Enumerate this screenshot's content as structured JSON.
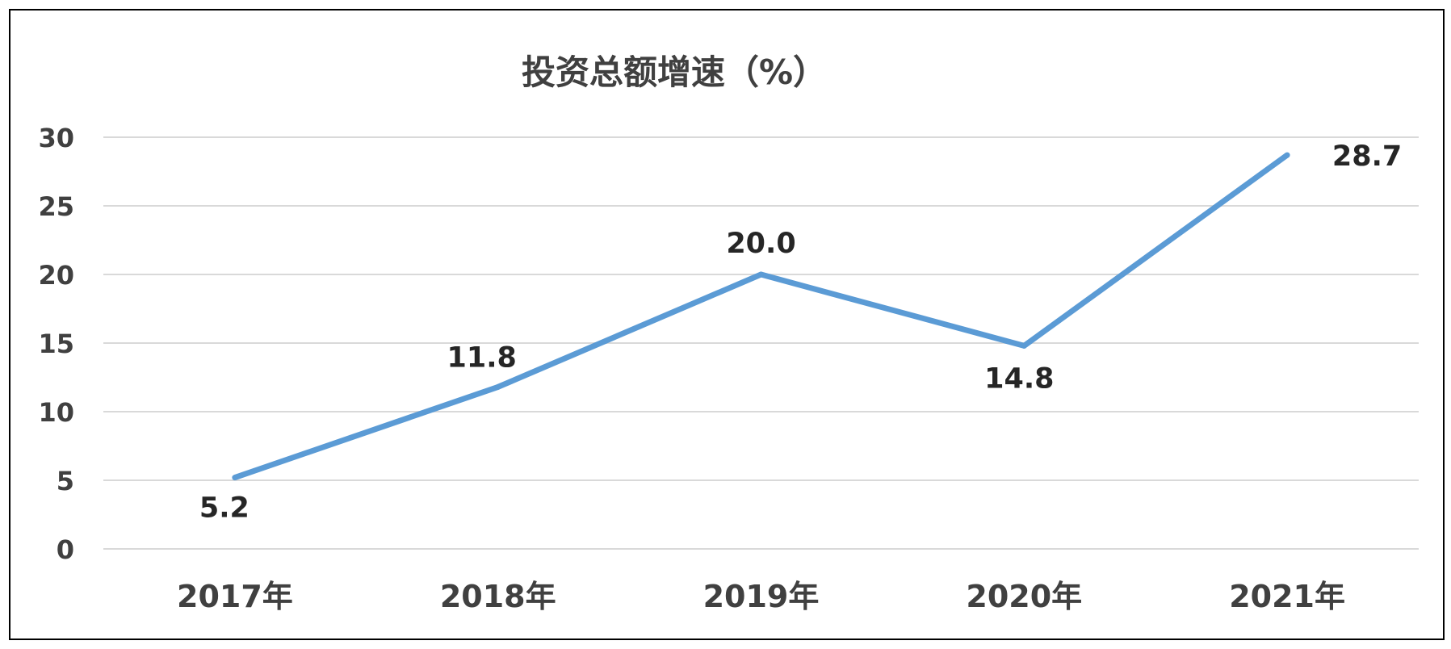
{
  "chart_data": {
    "type": "line",
    "title": "投资总额增速（%）",
    "categories": [
      "2017年",
      "2018年",
      "2019年",
      "2020年",
      "2021年"
    ],
    "series": [
      {
        "values": [
          5.2,
          11.8,
          20.0,
          14.8,
          28.7
        ],
        "labels": [
          "5.2",
          "11.8",
          "20.0",
          "14.8",
          "28.7"
        ]
      }
    ],
    "yticks": [
      "0",
      "5",
      "10",
      "15",
      "20",
      "25",
      "30"
    ],
    "ylim": [
      0,
      30
    ],
    "grid": true,
    "legend": "none",
    "colors": {
      "line": "#5B9BD5",
      "grid": "#D9D9D9",
      "text": "#404040",
      "frame": "#000000"
    }
  }
}
